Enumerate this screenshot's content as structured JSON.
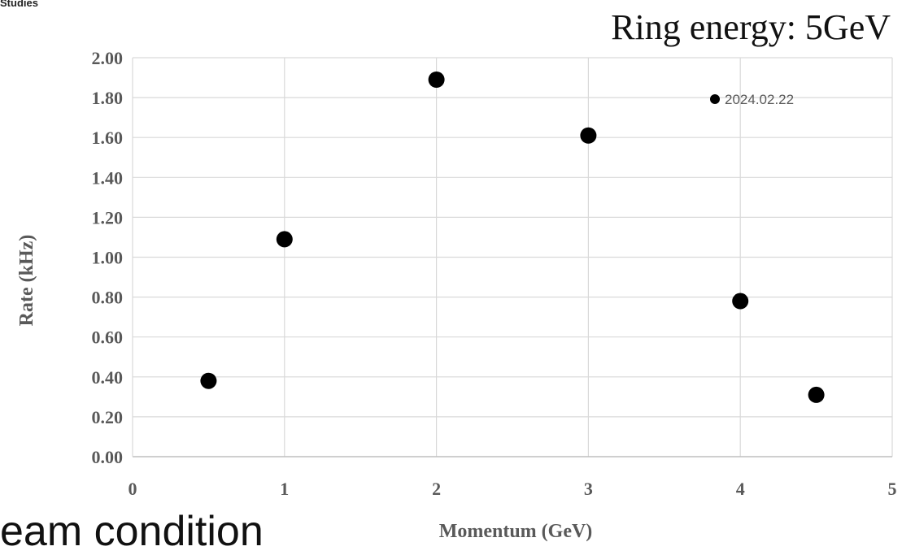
{
  "header": {
    "corner_label": "Studies",
    "ring_energy": "Ring energy: 5GeV"
  },
  "footer": {
    "partial_text": "eam condition"
  },
  "chart_data": {
    "type": "scatter",
    "x": [
      0.5,
      1,
      2,
      3,
      4,
      4.5
    ],
    "y": [
      0.38,
      1.09,
      1.89,
      1.61,
      0.78,
      0.31
    ],
    "series": [
      {
        "name": "2024.02.22",
        "x": [
          0.5,
          1,
          2,
          3,
          4,
          4.5
        ],
        "y": [
          0.38,
          1.09,
          1.89,
          1.61,
          0.78,
          0.31
        ],
        "color": "#000000"
      }
    ],
    "xlabel": "Momentum (GeV)",
    "ylabel": "Rate (kHz)",
    "xlim": [
      0,
      5
    ],
    "ylim": [
      0,
      2
    ],
    "xticks": [
      0,
      1,
      2,
      3,
      4,
      5
    ],
    "xtick_labels": [
      "0",
      "1",
      "2",
      "3",
      "4",
      "5"
    ],
    "yticks": [
      0,
      0.2,
      0.4,
      0.6,
      0.8,
      1,
      1.2,
      1.4,
      1.6,
      1.8,
      2
    ],
    "ytick_labels": [
      "0.00",
      "0.20",
      "0.40",
      "0.60",
      "0.80",
      "1.00",
      "1.20",
      "1.40",
      "1.60",
      "1.80",
      "2.00"
    ],
    "grid": true,
    "legend_position": "top-right",
    "gridline_color": "#d9d9d9"
  }
}
